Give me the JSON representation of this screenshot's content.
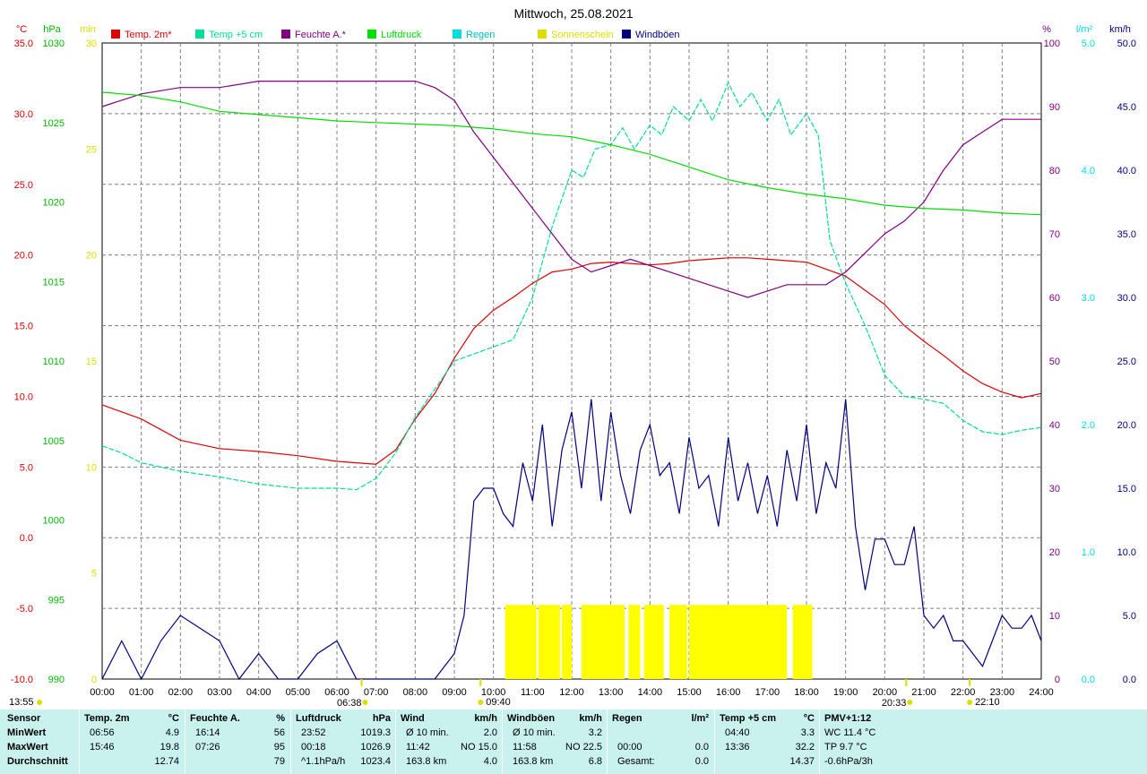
{
  "title": "Mittwoch, 25.08.2021",
  "axes": {
    "left": [
      {
        "unit": "°C",
        "color": "#dd0000",
        "ticks": [
          "35.0",
          "30.0",
          "25.0",
          "20.0",
          "15.0",
          "10.0",
          "5.0",
          "0.0",
          "-5.0",
          "-10.0"
        ],
        "range": [
          -10,
          35
        ]
      },
      {
        "unit": "hPa",
        "color": "#00bb00",
        "ticks": [
          "1030",
          "1025",
          "1020",
          "1015",
          "1010",
          "1005",
          "1000",
          "995",
          "990"
        ],
        "range": [
          990,
          1030
        ]
      },
      {
        "unit": "min",
        "color": "#dddd00",
        "ticks": [
          "30",
          "25",
          "20",
          "15",
          "10",
          "5",
          "0"
        ],
        "range": [
          0,
          30
        ]
      }
    ],
    "right": [
      {
        "unit": "%",
        "color": "#800080",
        "ticks": [
          "100",
          "90",
          "80",
          "70",
          "60",
          "50",
          "40",
          "30",
          "20",
          "10",
          "0"
        ],
        "range": [
          0,
          100
        ]
      },
      {
        "unit": "l/m²",
        "color": "#00dddd",
        "ticks": [
          "5.0",
          "4.0",
          "3.0",
          "2.0",
          "1.0",
          "0.0"
        ],
        "range": [
          0,
          5
        ]
      },
      {
        "unit": "km/h",
        "color": "#000080",
        "ticks": [
          "50.0",
          "45.0",
          "40.0",
          "35.0",
          "30.0",
          "25.0",
          "20.0",
          "15.0",
          "10.0",
          "5.0",
          "0.0"
        ],
        "range": [
          0,
          50
        ]
      }
    ],
    "x_ticks": [
      "00:00",
      "01:00",
      "02:00",
      "03:00",
      "04:00",
      "05:00",
      "06:00",
      "07:00",
      "08:00",
      "09:00",
      "10:00",
      "11:00",
      "12:00",
      "13:00",
      "14:00",
      "15:00",
      "16:00",
      "17:00",
      "18:00",
      "19:00",
      "20:00",
      "21:00",
      "22:00",
      "23:00",
      "24:00"
    ],
    "time_markers": [
      {
        "label": "13:55",
        "hour": 0,
        "row": "left"
      },
      {
        "label": "06:38",
        "hour": 6.63,
        "row": "below"
      },
      {
        "label": "09:40",
        "hour": 9.67,
        "row": "inline"
      },
      {
        "label": "20:33",
        "hour": 20.55,
        "row": "below"
      },
      {
        "label": "22:10",
        "hour": 22.17,
        "row": "inline"
      }
    ]
  },
  "legend": [
    {
      "label": "Temp. 2m*",
      "color": "#dd0000"
    },
    {
      "label": "Temp +5 cm",
      "color": "#00dd99"
    },
    {
      "label": "Feuchte A.*",
      "color": "#800080"
    },
    {
      "label": "Luftdruck",
      "color": "#00dd00"
    },
    {
      "label": "Regen",
      "color": "#00dddd"
    },
    {
      "label": "Sonnenschein",
      "color": "#dddd00"
    },
    {
      "label": "Windböen",
      "color": "#000080"
    }
  ],
  "chart_data": {
    "type": "line",
    "title": "Mittwoch, 25.08.2021",
    "x_range": [
      0,
      24
    ],
    "grid": true,
    "legend_position": "top",
    "series": [
      {
        "name": "Temp. 2m*",
        "axis": "°C",
        "color": "#dd0000",
        "x": [
          0,
          1,
          2,
          3,
          4,
          5,
          6,
          6.5,
          7,
          7.5,
          8,
          8.5,
          9,
          9.5,
          10,
          10.5,
          11,
          11.5,
          12,
          12.5,
          13,
          13.5,
          14,
          14.5,
          15,
          15.5,
          16,
          16.5,
          17,
          17.5,
          18,
          18.5,
          19,
          19.5,
          20,
          20.5,
          21,
          21.5,
          22,
          22.5,
          23,
          23.5,
          24
        ],
        "y": [
          9.4,
          8.4,
          6.9,
          6.3,
          6.1,
          5.8,
          5.4,
          5.3,
          5.2,
          6.2,
          8.4,
          10.2,
          12.7,
          14.8,
          16.1,
          17.0,
          18.0,
          18.8,
          19.0,
          19.4,
          19.5,
          19.4,
          19.3,
          19.4,
          19.6,
          19.7,
          19.8,
          19.8,
          19.7,
          19.6,
          19.5,
          19.0,
          18.5,
          17.5,
          16.5,
          15.0,
          13.9,
          12.9,
          11.8,
          10.9,
          10.3,
          9.9,
          10.2
        ]
      },
      {
        "name": "Temp +5 cm",
        "axis": "°C",
        "color": "#00dd99",
        "x": [
          0,
          0.5,
          1,
          2,
          3,
          4,
          5,
          6,
          6.5,
          7,
          7.5,
          8,
          8.5,
          9,
          9.5,
          10,
          10.5,
          11,
          11.5,
          12,
          12.3,
          12.6,
          13,
          13.3,
          13.6,
          14,
          14.3,
          14.6,
          15,
          15.3,
          15.6,
          16,
          16.3,
          16.6,
          17,
          17.3,
          17.6,
          18,
          18.3,
          18.6,
          19,
          19.5,
          20,
          20.5,
          21,
          21.5,
          22,
          22.5,
          23,
          23.5,
          24
        ],
        "y": [
          6.5,
          6.0,
          5.3,
          4.7,
          4.3,
          3.8,
          3.5,
          3.5,
          3.4,
          4.2,
          6.0,
          8.5,
          10.5,
          12.5,
          13.0,
          13.5,
          14.0,
          17.0,
          22.0,
          26.0,
          25.5,
          27.5,
          27.8,
          29.0,
          27.5,
          29.2,
          28.5,
          30.5,
          29.5,
          31.0,
          29.5,
          32.2,
          30.5,
          31.5,
          29.5,
          31.0,
          28.5,
          30.0,
          28.5,
          21.0,
          18.0,
          15.0,
          11.5,
          10.0,
          9.8,
          9.5,
          8.3,
          7.5,
          7.3,
          7.6,
          7.8
        ]
      },
      {
        "name": "Feuchte A.*",
        "axis": "%",
        "color": "#800080",
        "x": [
          0,
          0.5,
          1,
          2,
          3,
          4,
          5,
          6,
          7,
          7.5,
          8,
          8.5,
          9,
          9.5,
          10,
          10.5,
          11,
          11.5,
          12,
          12.5,
          13,
          13.5,
          14,
          14.5,
          15,
          15.5,
          16,
          16.5,
          17,
          17.5,
          18,
          18.5,
          19,
          19.5,
          20,
          20.5,
          21,
          21.5,
          22,
          22.5,
          23,
          23.5,
          24
        ],
        "y": [
          90,
          91,
          92,
          93,
          93,
          94,
          94,
          94,
          94,
          94,
          94,
          93,
          91,
          86,
          82,
          78,
          74,
          70,
          66,
          64,
          65,
          66,
          65,
          64,
          63,
          62,
          61,
          60,
          61,
          62,
          62,
          62,
          64,
          67,
          70,
          72,
          75,
          80,
          84,
          86,
          88,
          88,
          88
        ]
      },
      {
        "name": "Luftdruck",
        "axis": "hPa",
        "color": "#00dd00",
        "x": [
          0,
          1,
          2,
          3,
          4,
          5,
          6,
          7,
          8,
          9,
          10,
          11,
          12,
          13,
          14,
          15,
          16,
          17,
          18,
          19,
          20,
          21,
          22,
          23,
          24
        ],
        "y": [
          1026.9,
          1026.7,
          1026.3,
          1025.7,
          1025.5,
          1025.3,
          1025.1,
          1025.0,
          1024.9,
          1024.8,
          1024.6,
          1024.3,
          1024.1,
          1023.6,
          1023.0,
          1022.2,
          1021.4,
          1020.9,
          1020.5,
          1020.2,
          1019.8,
          1019.6,
          1019.5,
          1019.3,
          1019.2
        ]
      },
      {
        "name": "Windböen",
        "axis": "km/h",
        "color": "#000080",
        "x": [
          0,
          0.5,
          1,
          1.5,
          2,
          2.5,
          3,
          3.5,
          4,
          4.5,
          5,
          5.5,
          6,
          6.5,
          7,
          7.5,
          8,
          8.5,
          9,
          9.25,
          9.5,
          9.75,
          10,
          10.25,
          10.5,
          10.75,
          11,
          11.25,
          11.5,
          11.75,
          12,
          12.25,
          12.5,
          12.75,
          13,
          13.25,
          13.5,
          13.75,
          14,
          14.25,
          14.5,
          14.75,
          15,
          15.25,
          15.5,
          15.75,
          16,
          16.25,
          16.5,
          16.75,
          17,
          17.25,
          17.5,
          17.75,
          18,
          18.25,
          18.5,
          18.75,
          19,
          19.25,
          19.5,
          19.75,
          20,
          20.25,
          20.5,
          20.75,
          21,
          21.25,
          21.5,
          21.75,
          22,
          22.25,
          22.5,
          22.75,
          23,
          23.25,
          23.5,
          23.75,
          24
        ],
        "y": [
          0,
          3,
          0,
          3,
          5,
          4,
          3,
          0,
          2,
          0,
          0,
          2,
          3,
          0,
          0,
          0,
          0,
          0,
          2,
          5,
          14,
          15,
          15,
          13,
          12,
          17,
          14,
          20,
          12,
          18,
          21,
          15,
          22,
          14,
          21,
          16,
          13,
          18,
          20,
          16,
          17,
          13,
          19,
          15,
          16,
          12,
          19,
          14,
          17,
          13,
          16,
          12,
          18,
          14,
          20,
          13,
          17,
          15,
          22,
          12,
          7,
          11,
          11,
          9,
          9,
          12,
          5,
          4,
          5,
          3,
          3,
          2,
          1,
          3,
          5,
          4,
          4,
          5,
          3
        ]
      }
    ],
    "bars": [
      {
        "name": "Sonnenschein",
        "axis": "min",
        "color": "#ffff00",
        "value": 3.5,
        "intervals": [
          [
            10.3,
            11.1
          ],
          [
            11.15,
            11.7
          ],
          [
            11.75,
            12.0
          ],
          [
            12.25,
            13.35
          ],
          [
            13.45,
            13.75
          ],
          [
            13.85,
            14.35
          ],
          [
            14.5,
            14.95
          ],
          [
            15.0,
            17.5
          ],
          [
            17.65,
            18.15
          ]
        ]
      },
      {
        "name": "Regen",
        "axis": "l/m²",
        "color": "#00dddd",
        "value": 0.0,
        "intervals": []
      }
    ]
  },
  "stats": {
    "columns": [
      {
        "header": [
          "Sensor",
          ""
        ],
        "rows": [
          [
            "MinWert",
            ""
          ],
          [
            "MaxWert",
            ""
          ],
          [
            "Durchschnitt",
            ""
          ]
        ]
      },
      {
        "header": [
          "Temp. 2m",
          "°C"
        ],
        "rows": [
          [
            "06:56",
            "4.9"
          ],
          [
            "15:46",
            "19.8"
          ],
          [
            "",
            "12.74"
          ]
        ]
      },
      {
        "header": [
          "Feuchte A.",
          "%"
        ],
        "rows": [
          [
            "16:14",
            "56"
          ],
          [
            "07:26",
            "95"
          ],
          [
            "",
            "79"
          ]
        ]
      },
      {
        "header": [
          "Luftdruck",
          "hPa"
        ],
        "rows": [
          [
            "23:52",
            "1019.3"
          ],
          [
            "00:18",
            "1026.9"
          ],
          [
            "^1.1hPa/h",
            "1023.4"
          ]
        ]
      },
      {
        "header": [
          "Wind",
          "km/h"
        ],
        "rows": [
          [
            "Ø 10 min.",
            "2.0"
          ],
          [
            "11:42",
            "NO 15.0"
          ],
          [
            "163.8 km",
            "4.0"
          ]
        ]
      },
      {
        "header": [
          "Windböen",
          "km/h"
        ],
        "rows": [
          [
            "Ø 10 min.",
            "3.2"
          ],
          [
            "11:58",
            "NO 22.5"
          ],
          [
            "163.8 km",
            "6.8"
          ]
        ]
      },
      {
        "header": [
          "Regen",
          "l/m²"
        ],
        "rows": [
          [
            "",
            ""
          ],
          [
            "00:00",
            "0.0"
          ],
          [
            "Gesamt:",
            "0.0"
          ]
        ]
      },
      {
        "header": [
          "Temp +5 cm",
          "°C"
        ],
        "rows": [
          [
            "04:40",
            "3.3"
          ],
          [
            "13:36",
            "32.2"
          ],
          [
            "",
            "14.37"
          ]
        ]
      },
      {
        "header": [
          "PMV+1:12",
          ""
        ],
        "rows": [
          [
            "WC 11.4 °C",
            ""
          ],
          [
            "TP 9.7 °C",
            ""
          ],
          [
            "-0.6hPa/3h",
            ""
          ]
        ]
      }
    ]
  }
}
